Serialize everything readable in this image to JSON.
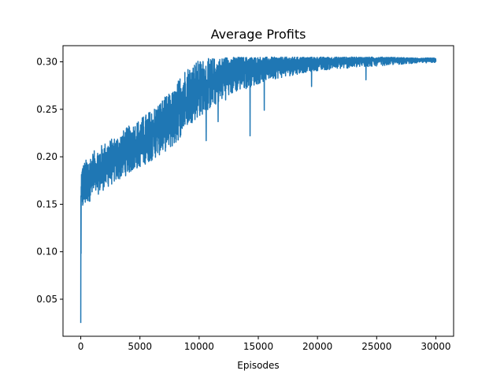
{
  "chart_data": {
    "type": "line",
    "title": "Average Profits",
    "xlabel": "Episodes",
    "ylabel": "",
    "xlim": [
      -1500,
      31500
    ],
    "ylim": [
      0.011,
      0.317
    ],
    "xticks": [
      0,
      5000,
      10000,
      15000,
      20000,
      25000,
      30000
    ],
    "xtick_labels": [
      "0",
      "5000",
      "10000",
      "15000",
      "20000",
      "25000",
      "30000"
    ],
    "yticks": [
      0.05,
      0.1,
      0.15,
      0.2,
      0.25,
      0.3
    ],
    "ytick_labels": [
      "0.05",
      "0.10",
      "0.15",
      "0.20",
      "0.25",
      "0.30"
    ],
    "grid": false,
    "series": [
      {
        "color": "#1f77b4",
        "approximate_envelope": {
          "x": [
            0,
            60,
            150,
            300,
            500,
            1000,
            2000,
            3000,
            4000,
            5000,
            6000,
            7000,
            8000,
            8500,
            9000,
            10000,
            11000,
            12000,
            13000,
            14000,
            15000,
            16000,
            17000,
            18000,
            19000,
            20000,
            22000,
            24000,
            26000,
            28000,
            30000
          ],
          "upper": [
            0.18,
            0.19,
            0.193,
            0.195,
            0.198,
            0.205,
            0.215,
            0.222,
            0.232,
            0.24,
            0.25,
            0.262,
            0.272,
            0.29,
            0.295,
            0.302,
            0.304,
            0.305,
            0.305,
            0.305,
            0.305,
            0.305,
            0.305,
            0.305,
            0.305,
            0.305,
            0.305,
            0.305,
            0.305,
            0.304,
            0.304
          ],
          "lower": [
            0.025,
            0.135,
            0.138,
            0.14,
            0.145,
            0.15,
            0.16,
            0.168,
            0.176,
            0.183,
            0.19,
            0.198,
            0.205,
            0.215,
            0.225,
            0.235,
            0.245,
            0.255,
            0.265,
            0.27,
            0.275,
            0.28,
            0.282,
            0.285,
            0.288,
            0.29,
            0.292,
            0.294,
            0.296,
            0.298,
            0.299
          ]
        },
        "dips": [
          {
            "x": 0,
            "y": 0.025
          },
          {
            "x": 10600,
            "y": 0.217
          },
          {
            "x": 11600,
            "y": 0.237
          },
          {
            "x": 14300,
            "y": 0.222
          },
          {
            "x": 15500,
            "y": 0.249
          },
          {
            "x": 19500,
            "y": 0.274
          },
          {
            "x": 24100,
            "y": 0.281
          }
        ]
      }
    ]
  }
}
